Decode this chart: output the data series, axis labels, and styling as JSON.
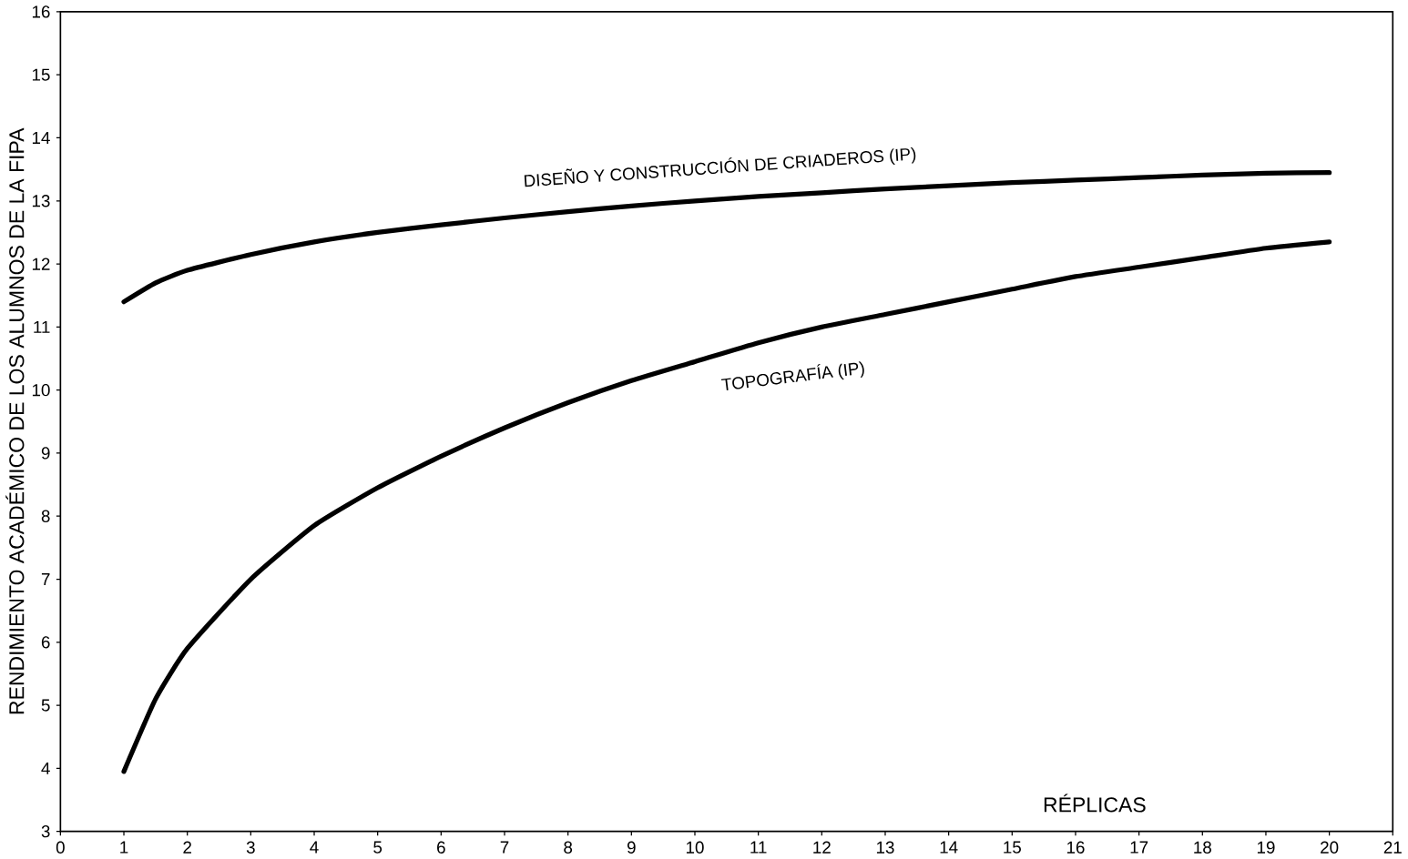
{
  "chart_data": {
    "type": "line",
    "xlabel": "RÉPLICAS",
    "ylabel": "RENDIMIENTO ACADÉMICO DE LOS ALUMNOS DE LA FIPA",
    "x": [
      1,
      1.5,
      2,
      3,
      4,
      5,
      6,
      7,
      8,
      9,
      10,
      11,
      12,
      13,
      14,
      15,
      16,
      17,
      18,
      19,
      20
    ],
    "series": [
      {
        "color": "#000000",
        "values": [
          11.4,
          11.7,
          11.9,
          12.15,
          12.35,
          12.5,
          12.62,
          12.73,
          12.83,
          12.92,
          13.0,
          13.07,
          13.13,
          13.19,
          13.24,
          13.29,
          13.33,
          13.37,
          13.41,
          13.44,
          13.45
        ]
      },
      {
        "color": "#000000",
        "values": [
          3.95,
          5.1,
          5.9,
          7.0,
          7.85,
          8.45,
          8.95,
          9.4,
          9.8,
          10.15,
          10.45,
          10.75,
          11.0,
          11.2,
          11.4,
          11.6,
          11.8,
          11.95,
          12.1,
          12.25,
          12.35
        ]
      }
    ],
    "annotations": [
      "DISEÑO Y CONSTRUCCIÓN DE CRIADEROS (IP)",
      "TOPOGRAFÍA (IP)"
    ],
    "xlim": [
      0,
      21
    ],
    "ylim": [
      3,
      16
    ],
    "xticks": [
      0,
      1,
      2,
      3,
      4,
      5,
      6,
      7,
      8,
      9,
      10,
      11,
      12,
      13,
      14,
      15,
      16,
      17,
      18,
      19,
      20,
      21
    ],
    "yticks": [
      3,
      4,
      5,
      6,
      7,
      8,
      9,
      10,
      11,
      12,
      13,
      14,
      15,
      16
    ],
    "grid": false,
    "marker": "none",
    "line_style": "solid"
  }
}
